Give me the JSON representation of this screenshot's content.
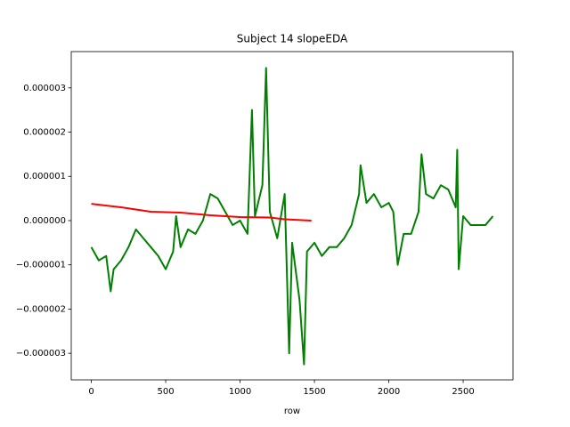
{
  "chart_data": {
    "type": "line",
    "title": "Subject 14 slopeEDA",
    "xlabel": "row",
    "xlim": [
      -135,
      2835
    ],
    "xticks": [
      0,
      500,
      1000,
      1500,
      2000,
      2500
    ],
    "ylim": [
      -3.6e-06,
      3.82e-06
    ],
    "yticks": [
      {
        "value": -3e-06,
        "label": "−0.000003"
      },
      {
        "value": -2e-06,
        "label": "−0.000002"
      },
      {
        "value": -1e-06,
        "label": "−0.000001"
      },
      {
        "value": 0,
        "label": "0.000000"
      },
      1e-06,
      2e-06,
      3e-06
    ],
    "series": [
      {
        "color": "#008000",
        "x": [
          0,
          50,
          100,
          130,
          150,
          200,
          250,
          300,
          350,
          400,
          450,
          500,
          550,
          570,
          600,
          650,
          700,
          750,
          800,
          850,
          900,
          950,
          1000,
          1050,
          1080,
          1100,
          1150,
          1175,
          1200,
          1250,
          1300,
          1330,
          1350,
          1400,
          1430,
          1450,
          1500,
          1550,
          1600,
          1650,
          1700,
          1750,
          1800,
          1810,
          1850,
          1900,
          1950,
          2000,
          2030,
          2050,
          2060,
          2100,
          2150,
          2200,
          2220,
          2250,
          2300,
          2350,
          2400,
          2450,
          2460,
          2470,
          2500,
          2550,
          2600,
          2650,
          2700
        ],
        "values": [
          -6e-07,
          -9e-07,
          -8e-07,
          -1.6e-06,
          -1.1e-06,
          -9e-07,
          -6e-07,
          -2e-07,
          -4e-07,
          -6e-07,
          -8e-07,
          -1.1e-06,
          -7e-07,
          1e-07,
          -6e-07,
          -2e-07,
          -3e-07,
          0,
          6e-07,
          5e-07,
          2e-07,
          -1e-07,
          0,
          -3e-07,
          2.5e-06,
          1e-07,
          8e-07,
          3.45e-06,
          2e-07,
          -4e-07,
          6e-07,
          -3e-06,
          -5e-07,
          -1.8e-06,
          -3.25e-06,
          -7e-07,
          -5e-07,
          -8e-07,
          -6e-07,
          -6e-07,
          -4e-07,
          -1e-07,
          6e-07,
          1.25e-06,
          4e-07,
          6e-07,
          3e-07,
          4e-07,
          2e-07,
          -6e-07,
          -1e-06,
          -3e-07,
          -3e-07,
          2e-07,
          1.5e-06,
          6e-07,
          5e-07,
          8e-07,
          7e-07,
          3e-07,
          1.6e-06,
          -1.1e-06,
          1e-07,
          -1e-07,
          -1e-07,
          -1e-07,
          1e-07
        ]
      },
      {
        "color": "#ff0000",
        "x": [
          0,
          200,
          400,
          600,
          800,
          1000,
          1200,
          1300,
          1480
        ],
        "values": [
          3.8e-07,
          3e-07,
          2e-07,
          1.8e-07,
          1.2e-07,
          8e-08,
          7e-08,
          3e-08,
          0
        ]
      }
    ]
  }
}
